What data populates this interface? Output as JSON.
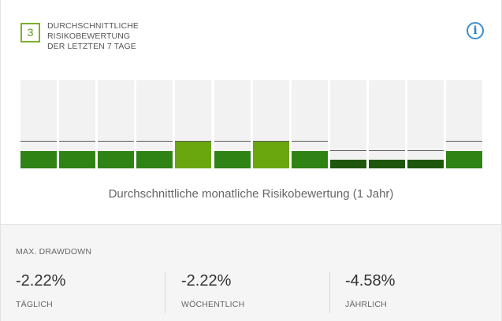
{
  "header": {
    "score": "3",
    "title_lines": [
      "DURCHSCHNITTLICHE",
      "RISIKOBEWERTUNG",
      "DER LETZTEN 7 TAGE"
    ],
    "info_icon": "info-icon"
  },
  "colors": {
    "normal": "#2f8314",
    "highlight": "#6aa70f",
    "dark": "#1f560d",
    "track": "#f2f2f2"
  },
  "monthly_scores": {
    "note_icon": "bar-columns",
    "months": [
      {
        "fill": 0.2,
        "line": 0.3,
        "tone": "normal"
      },
      {
        "fill": 0.2,
        "line": 0.3,
        "tone": "normal"
      },
      {
        "fill": 0.2,
        "line": 0.3,
        "tone": "normal"
      },
      {
        "fill": 0.2,
        "line": 0.3,
        "tone": "normal"
      },
      {
        "fill": 0.3,
        "line": 0.3,
        "tone": "highlight"
      },
      {
        "fill": 0.2,
        "line": 0.3,
        "tone": "normal"
      },
      {
        "fill": 0.3,
        "line": 0.3,
        "tone": "highlight"
      },
      {
        "fill": 0.2,
        "line": 0.3,
        "tone": "normal"
      },
      {
        "fill": 0.1,
        "line": 0.2,
        "tone": "dark"
      },
      {
        "fill": 0.1,
        "line": 0.2,
        "tone": "dark"
      },
      {
        "fill": 0.1,
        "line": 0.2,
        "tone": "dark"
      },
      {
        "fill": 0.2,
        "line": 0.3,
        "tone": "normal"
      }
    ]
  },
  "caption": "Durchschnittliche monatliche Risikobewertung (1 Jahr)",
  "drawdown": {
    "title": "MAX. DRAWDOWN",
    "metrics": [
      {
        "value": "-2.22%",
        "label": "TÄGLICH"
      },
      {
        "value": "-2.22%",
        "label": "WÖCHENTLICH"
      },
      {
        "value": "-4.58%",
        "label": "JÄHRLICH"
      }
    ]
  }
}
